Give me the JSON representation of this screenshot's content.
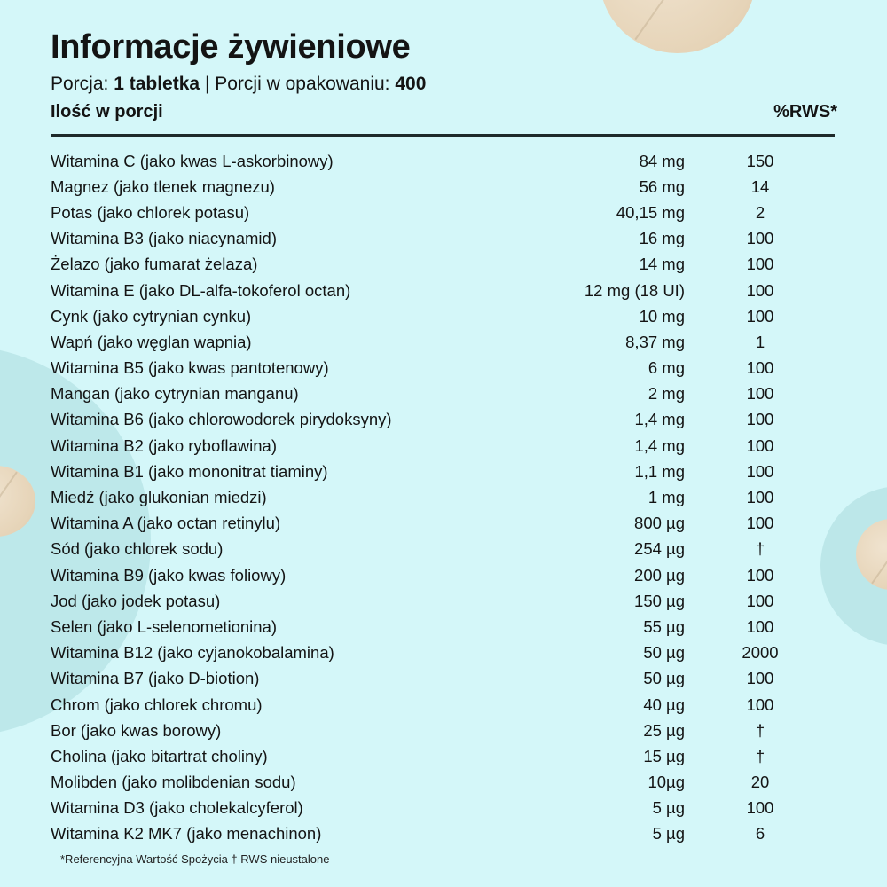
{
  "title": "Informacje żywieniowe",
  "serving": {
    "portion_label": "Porcja:",
    "portion_value": "1 tabletka",
    "separator": "|",
    "per_package_label": "Porcji w opakowaniu:",
    "per_package_value": "400"
  },
  "columns": {
    "amount_header": "Ilość w porcji",
    "rws_header": "%RWS*"
  },
  "rows": [
    {
      "name": "Witamina C (jako kwas L-askorbinowy)",
      "amount": "84 mg",
      "rws": "150"
    },
    {
      "name": "Magnez (jako tlenek magnezu)",
      "amount": "56 mg",
      "rws": "14"
    },
    {
      "name": "Potas (jako chlorek potasu)",
      "amount": "40,15 mg",
      "rws": "2"
    },
    {
      "name": "Witamina B3 (jako niacynamid)",
      "amount": "16 mg",
      "rws": "100"
    },
    {
      "name": "Żelazo (jako fumarat żelaza)",
      "amount": "14 mg",
      "rws": "100"
    },
    {
      "name": "Witamina E (jako DL-alfa-tokoferol octan)",
      "amount": "12 mg (18 UI)",
      "rws": "100"
    },
    {
      "name": "Cynk (jako cytrynian cynku)",
      "amount": "10 mg",
      "rws": "100"
    },
    {
      "name": "Wapń (jako węglan wapnia)",
      "amount": "8,37 mg",
      "rws": "1"
    },
    {
      "name": "Witamina B5 (jako kwas pantotenowy)",
      "amount": "6 mg",
      "rws": "100"
    },
    {
      "name": "Mangan (jako cytrynian manganu)",
      "amount": "2 mg",
      "rws": "100"
    },
    {
      "name": "Witamina B6 (jako chlorowodorek pirydoksyny)",
      "amount": "1,4 mg",
      "rws": "100"
    },
    {
      "name": "Witamina B2 (jako ryboflawina)",
      "amount": "1,4 mg",
      "rws": "100"
    },
    {
      "name": "Witamina B1 (jako mononitrat tiaminy)",
      "amount": "1,1 mg",
      "rws": "100"
    },
    {
      "name": "Miedź (jako glukonian miedzi)",
      "amount": "1 mg",
      "rws": "100"
    },
    {
      "name": "Witamina A (jako octan retinylu)",
      "amount": "800 µg",
      "rws": "100"
    },
    {
      "name": "Sód (jako chlorek sodu)",
      "amount": "254 µg",
      "rws": "†"
    },
    {
      "name": "Witamina B9 (jako kwas foliowy)",
      "amount": "200 µg",
      "rws": "100"
    },
    {
      "name": "Jod (jako jodek potasu)",
      "amount": "150 µg",
      "rws": "100"
    },
    {
      "name": "Selen (jako L-selenometionina)",
      "amount": "55 µg",
      "rws": "100"
    },
    {
      "name": "Witamina B12 (jako cyjanokobalamina)",
      "amount": "50 µg",
      "rws": "2000"
    },
    {
      "name": "Witamina B7 (jako D-biotion)",
      "amount": "50 µg",
      "rws": "100"
    },
    {
      "name": "Chrom (jako chlorek chromu)",
      "amount": "40 µg",
      "rws": "100"
    },
    {
      "name": "Bor (jako kwas borowy)",
      "amount": "25 µg",
      "rws": "†"
    },
    {
      "name": "Cholina (jako bitartrat choliny)",
      "amount": "15 µg",
      "rws": "†"
    },
    {
      "name": "Molibden (jako molibdenian sodu)",
      "amount": "10µg",
      "rws": "20"
    },
    {
      "name": "Witamina D3 (jako cholekalcyferol)",
      "amount": "5 µg",
      "rws": "100"
    },
    {
      "name": "Witamina K2 MK7 (jako menachinon)",
      "amount": "5 µg",
      "rws": "6"
    }
  ],
  "footnote": "*Referencyjna Wartość Spożycia † RWS nieustalone",
  "colors": {
    "background": "#d4f7f9",
    "accent_circle": "#bde8ea",
    "tablet": "#e6d4b8",
    "text": "#141414"
  }
}
